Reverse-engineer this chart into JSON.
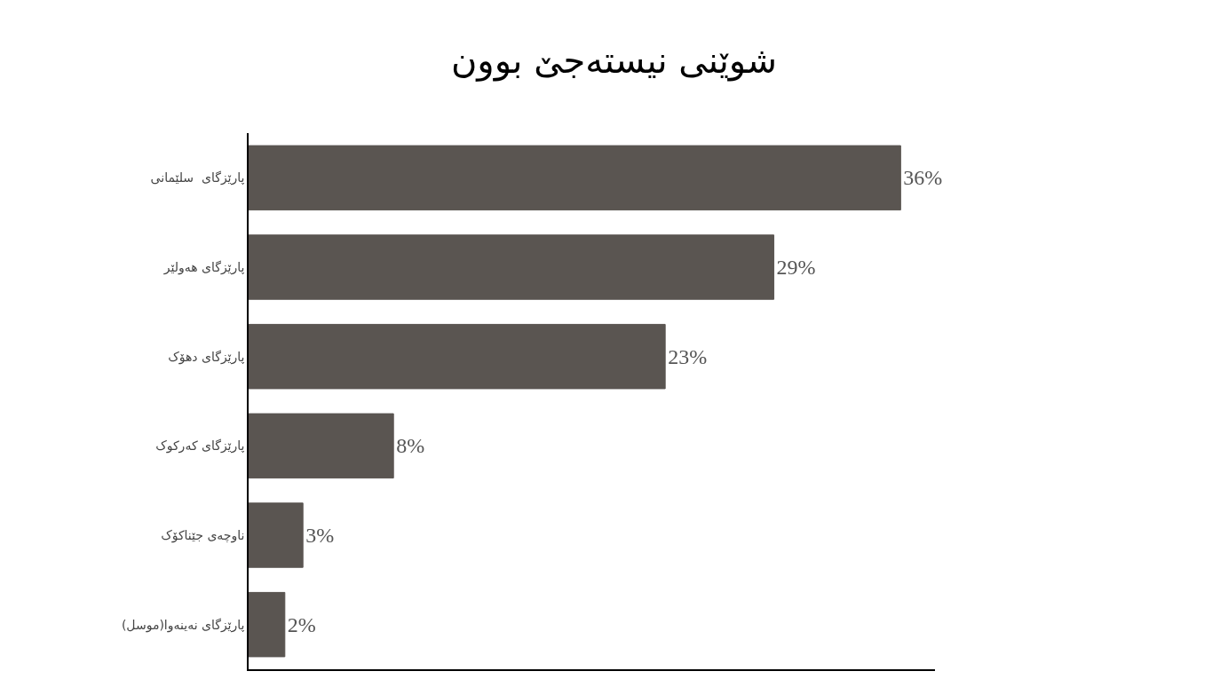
{
  "chart_data": {
    "type": "bar",
    "orientation": "horizontal",
    "title": "شوێنی نیستەجێ بوون",
    "categories": [
      "پارێزگای  سلێمانی",
      "پارێزگای هەولێر",
      "پارێزگای دهۆک",
      "پارێزگای کەرکوک",
      "ناوچەی جێناکۆک",
      "پارێزگای نەینەوا(موسل)"
    ],
    "values": [
      36,
      29,
      23,
      8,
      3,
      2
    ],
    "value_labels": [
      "36%",
      "29%",
      "23%",
      "8%",
      "3%",
      "2%"
    ],
    "color": "#5a5551",
    "tick_labels": "y"
  }
}
